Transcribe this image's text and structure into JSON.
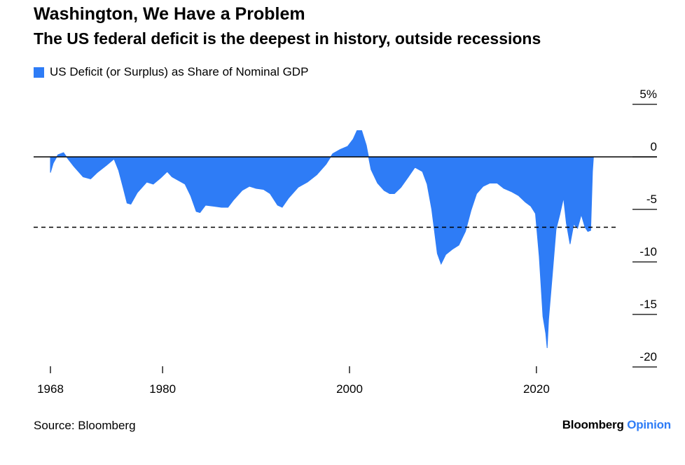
{
  "header": {
    "title": "Washington, We Have a Problem",
    "subtitle": "The US federal deficit is the deepest in history, outside recessions"
  },
  "footer": {
    "source": "Source: Bloomberg",
    "brand_part1": "Bloomberg",
    "brand_part2": "Opinion"
  },
  "colors": {
    "series": "#2e7cf6",
    "axis": "#000000",
    "reference_line": "#000000"
  },
  "chart_data": {
    "type": "area",
    "title": "Washington, We Have a Problem",
    "subtitle": "The US federal deficit is the deepest in history, outside recessions",
    "xlabel": "",
    "ylabel": "",
    "xlim": [
      1966.2,
      2032.9
    ],
    "ylim": [
      -20,
      5
    ],
    "y_ticks": [
      5,
      0,
      -5,
      -10,
      -15,
      -20
    ],
    "y_tick_labels": [
      "5%",
      "0",
      "-5",
      "-10",
      "-15",
      "-20"
    ],
    "x_ticks": [
      1968,
      1980,
      2000,
      2020
    ],
    "x_tick_labels": [
      "1968",
      "1980",
      "2000",
      "2020"
    ],
    "grid": false,
    "legend_position": "top-left",
    "reference_lines": [
      {
        "axis": "y",
        "value": 0,
        "style": "solid"
      },
      {
        "axis": "y",
        "value": -6.7,
        "style": "dashed"
      }
    ],
    "series": [
      {
        "name": "US Deficit (or Surplus) as Share of Nominal GDP",
        "points": [
          [
            1968.0,
            -1.5
          ],
          [
            1968.3,
            -0.6
          ],
          [
            1968.8,
            0.2
          ],
          [
            1969.4,
            0.4
          ],
          [
            1969.8,
            -0.1
          ],
          [
            1970.5,
            -0.9
          ],
          [
            1971.5,
            -1.9
          ],
          [
            1972.3,
            -2.1
          ],
          [
            1973.0,
            -1.5
          ],
          [
            1974.0,
            -0.8
          ],
          [
            1974.8,
            -0.2
          ],
          [
            1975.3,
            -1.3
          ],
          [
            1975.8,
            -3.0
          ],
          [
            1976.2,
            -4.4
          ],
          [
            1976.6,
            -4.5
          ],
          [
            1977.3,
            -3.4
          ],
          [
            1978.3,
            -2.4
          ],
          [
            1979.0,
            -2.6
          ],
          [
            1979.8,
            -2.0
          ],
          [
            1980.5,
            -1.4
          ],
          [
            1981.0,
            -1.9
          ],
          [
            1981.8,
            -2.3
          ],
          [
            1982.4,
            -2.6
          ],
          [
            1983.0,
            -3.7
          ],
          [
            1983.6,
            -5.2
          ],
          [
            1984.0,
            -5.3
          ],
          [
            1984.6,
            -4.6
          ],
          [
            1985.5,
            -4.7
          ],
          [
            1986.3,
            -4.8
          ],
          [
            1987.0,
            -4.8
          ],
          [
            1987.6,
            -4.1
          ],
          [
            1988.5,
            -3.2
          ],
          [
            1989.3,
            -2.8
          ],
          [
            1990.0,
            -3.0
          ],
          [
            1990.8,
            -3.1
          ],
          [
            1991.5,
            -3.5
          ],
          [
            1992.3,
            -4.6
          ],
          [
            1992.8,
            -4.8
          ],
          [
            1993.5,
            -3.9
          ],
          [
            1994.5,
            -2.9
          ],
          [
            1995.5,
            -2.4
          ],
          [
            1996.5,
            -1.7
          ],
          [
            1997.5,
            -0.7
          ],
          [
            1998.2,
            0.3
          ],
          [
            1999.0,
            0.7
          ],
          [
            1999.8,
            1.0
          ],
          [
            2000.4,
            1.7
          ],
          [
            2000.8,
            2.5
          ],
          [
            2001.3,
            2.5
          ],
          [
            2001.8,
            1.1
          ],
          [
            2002.3,
            -1.2
          ],
          [
            2003.0,
            -2.5
          ],
          [
            2003.7,
            -3.2
          ],
          [
            2004.3,
            -3.5
          ],
          [
            2004.8,
            -3.5
          ],
          [
            2005.5,
            -2.9
          ],
          [
            2006.3,
            -1.9
          ],
          [
            2007.0,
            -1.0
          ],
          [
            2007.8,
            -1.4
          ],
          [
            2008.3,
            -2.6
          ],
          [
            2008.8,
            -5.0
          ],
          [
            2009.4,
            -9.2
          ],
          [
            2009.8,
            -10.2
          ],
          [
            2010.3,
            -9.3
          ],
          [
            2011.0,
            -8.8
          ],
          [
            2011.7,
            -8.4
          ],
          [
            2012.4,
            -7.1
          ],
          [
            2013.0,
            -5.1
          ],
          [
            2013.6,
            -3.5
          ],
          [
            2014.3,
            -2.8
          ],
          [
            2015.0,
            -2.5
          ],
          [
            2015.8,
            -2.5
          ],
          [
            2016.5,
            -3.0
          ],
          [
            2017.3,
            -3.3
          ],
          [
            2018.1,
            -3.7
          ],
          [
            2018.8,
            -4.3
          ],
          [
            2019.4,
            -4.7
          ],
          [
            2019.9,
            -5.4
          ],
          [
            2020.3,
            -9.5
          ],
          [
            2020.7,
            -15.2
          ],
          [
            2021.0,
            -16.8
          ],
          [
            2021.15,
            -18.2
          ],
          [
            2021.3,
            -15.5
          ],
          [
            2021.7,
            -11.2
          ],
          [
            2022.1,
            -6.9
          ],
          [
            2022.5,
            -5.5
          ],
          [
            2022.9,
            -3.9
          ],
          [
            2023.2,
            -6.3
          ],
          [
            2023.6,
            -8.3
          ],
          [
            2024.0,
            -6.4
          ],
          [
            2024.4,
            -6.8
          ],
          [
            2024.8,
            -5.5
          ],
          [
            2025.2,
            -6.7
          ],
          [
            2025.5,
            -7.1
          ],
          [
            2025.8,
            -7.0
          ],
          [
            2026.0,
            -1.4
          ],
          [
            2026.1,
            0.0
          ]
        ]
      }
    ]
  }
}
